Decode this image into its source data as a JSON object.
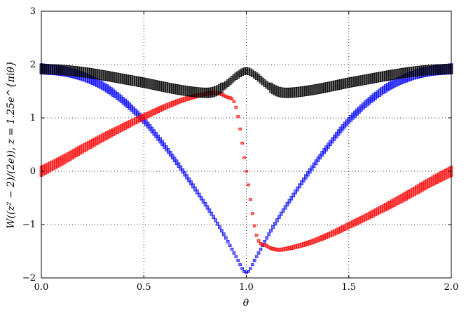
{
  "chart_data": {
    "type": "scatter",
    "xlabel": "θ",
    "ylabel": "W((z² − 2)/(2e)), z = 1.25e^{πiθ}",
    "xlim": [
      0.0,
      2.0
    ],
    "ylim": [
      -2,
      3
    ],
    "xticks": [
      0.0,
      0.5,
      1.0,
      1.5,
      2.0
    ],
    "xtick_labels": [
      "0.0",
      "0.5",
      "1.0",
      "1.5",
      "2.0"
    ],
    "yticks": [
      -2,
      -1,
      0,
      1,
      2,
      3
    ],
    "ytick_labels": [
      "−2",
      "−1",
      "0",
      "1",
      "2",
      "3"
    ],
    "grid": true,
    "grid_style": "dotted",
    "marker": "square",
    "marker_size_encodes": "magnitude",
    "series": [
      {
        "color": "#0000ff",
        "x": [
          0.0,
          0.1,
          0.2,
          0.3,
          0.4,
          0.5,
          0.6,
          0.7,
          0.8,
          0.85,
          0.9,
          0.95,
          1.0,
          1.05,
          1.1,
          1.15,
          1.2,
          1.3,
          1.4,
          1.5,
          1.6,
          1.7,
          1.8,
          1.9,
          2.0
        ],
        "y": [
          1.92,
          1.88,
          1.78,
          1.6,
          1.32,
          0.95,
          0.48,
          -0.05,
          -0.62,
          -0.92,
          -1.25,
          -1.6,
          -1.9,
          -1.6,
          -1.25,
          -0.92,
          -0.62,
          -0.05,
          0.48,
          0.95,
          1.32,
          1.6,
          1.78,
          1.88,
          1.92
        ]
      },
      {
        "color": "#ff0000",
        "x": [
          0.0,
          0.1,
          0.2,
          0.3,
          0.4,
          0.5,
          0.6,
          0.7,
          0.8,
          0.85,
          0.9,
          0.95,
          1.0,
          1.05,
          1.1,
          1.15,
          1.2,
          1.3,
          1.4,
          1.5,
          1.6,
          1.7,
          1.8,
          1.9,
          2.0
        ],
        "y": [
          0.0,
          0.2,
          0.42,
          0.63,
          0.83,
          1.02,
          1.2,
          1.35,
          1.45,
          1.47,
          1.4,
          1.2,
          0.0,
          -1.2,
          -1.4,
          -1.47,
          -1.45,
          -1.35,
          -1.2,
          -1.02,
          -0.83,
          -0.63,
          -0.42,
          -0.2,
          0.0
        ]
      },
      {
        "color": "#000000",
        "x": [
          0.0,
          0.1,
          0.2,
          0.3,
          0.4,
          0.5,
          0.6,
          0.7,
          0.8,
          0.85,
          0.9,
          0.95,
          1.0,
          1.05,
          1.1,
          1.15,
          1.2,
          1.3,
          1.4,
          1.5,
          1.6,
          1.7,
          1.8,
          1.9,
          2.0
        ],
        "y": [
          1.92,
          1.9,
          1.86,
          1.8,
          1.73,
          1.66,
          1.58,
          1.51,
          1.47,
          1.5,
          1.62,
          1.78,
          1.88,
          1.78,
          1.62,
          1.5,
          1.47,
          1.51,
          1.58,
          1.66,
          1.73,
          1.8,
          1.86,
          1.9,
          1.92
        ]
      }
    ]
  }
}
